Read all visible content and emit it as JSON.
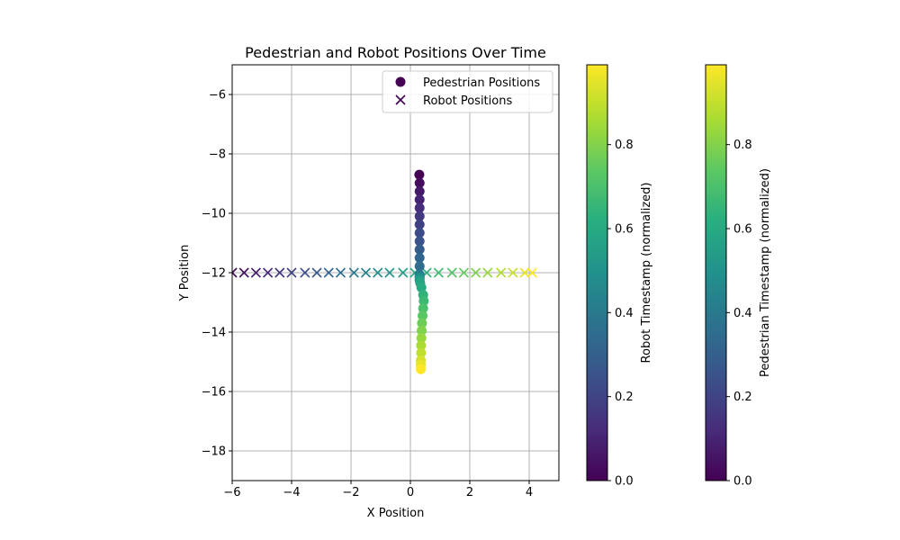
{
  "chart_data": {
    "type": "scatter",
    "title": "Pedestrian and Robot Positions Over Time",
    "xlabel": "X Position",
    "ylabel": "Y Position",
    "xlim": [
      -6,
      5
    ],
    "ylim": [
      -19,
      -5
    ],
    "xticks": [
      -6,
      -4,
      -2,
      0,
      2,
      4
    ],
    "yticks": [
      -6,
      -8,
      -10,
      -12,
      -14,
      -16,
      -18
    ],
    "grid": true,
    "legend_position": "top-right",
    "colormap": "viridis",
    "series": [
      {
        "name": "Pedestrian Positions",
        "marker": "circle",
        "x": [
          0.3,
          0.31,
          0.31,
          0.31,
          0.31,
          0.31,
          0.31,
          0.31,
          0.31,
          0.31,
          0.31,
          0.31,
          0.31,
          0.31,
          0.31,
          0.31,
          0.31,
          0.31,
          0.33,
          0.37,
          0.43,
          0.45,
          0.43,
          0.41,
          0.39,
          0.38,
          0.37,
          0.36,
          0.36,
          0.35,
          0.35,
          0.35
        ],
        "y": [
          -8.7,
          -8.98,
          -9.26,
          -9.54,
          -9.82,
          -10.1,
          -10.38,
          -10.66,
          -10.94,
          -11.22,
          -11.5,
          -11.78,
          -12.06,
          -12.1,
          -12.14,
          -12.18,
          -12.22,
          -12.26,
          -12.35,
          -12.5,
          -12.75,
          -12.95,
          -13.2,
          -13.45,
          -13.7,
          -13.95,
          -14.2,
          -14.45,
          -14.7,
          -14.95,
          -15.1,
          -15.25
        ],
        "t": [
          0.0,
          0.032,
          0.065,
          0.097,
          0.129,
          0.161,
          0.194,
          0.226,
          0.258,
          0.29,
          0.323,
          0.355,
          0.387,
          0.419,
          0.452,
          0.484,
          0.516,
          0.548,
          0.581,
          0.613,
          0.645,
          0.677,
          0.71,
          0.742,
          0.774,
          0.806,
          0.839,
          0.871,
          0.903,
          0.935,
          0.968,
          1.0
        ]
      },
      {
        "name": "Robot Positions",
        "marker": "x",
        "x": [
          -6.0,
          -5.6,
          -5.2,
          -4.8,
          -4.4,
          -4.0,
          -3.55,
          -3.15,
          -2.75,
          -2.35,
          -1.9,
          -1.5,
          -1.1,
          -0.7,
          -0.25,
          0.15,
          0.55,
          0.95,
          1.4,
          1.8,
          2.2,
          2.6,
          3.05,
          3.45,
          3.85,
          4.1
        ],
        "y": [
          -12,
          -12,
          -12,
          -12,
          -12,
          -12,
          -12,
          -12,
          -12,
          -12,
          -12,
          -12,
          -12,
          -12,
          -12,
          -12,
          -12,
          -12,
          -12,
          -12,
          -12,
          -12,
          -12,
          -12,
          -12,
          -12
        ],
        "t": [
          0.0,
          0.04,
          0.08,
          0.12,
          0.16,
          0.2,
          0.24,
          0.28,
          0.32,
          0.36,
          0.4,
          0.44,
          0.48,
          0.52,
          0.56,
          0.6,
          0.64,
          0.68,
          0.72,
          0.76,
          0.8,
          0.84,
          0.88,
          0.92,
          0.96,
          1.0
        ]
      }
    ],
    "colorbars": [
      {
        "label": "Robot Timestamp (normalized)",
        "ticks": [
          "0.0",
          "0.2",
          "0.4",
          "0.6",
          "0.8"
        ],
        "tick_values": [
          0,
          0.2,
          0.4,
          0.6,
          0.8
        ],
        "range": [
          0,
          0.99
        ]
      },
      {
        "label": "Pedestrian Timestamp (normalized)",
        "ticks": [
          "0.0",
          "0.2",
          "0.4",
          "0.6",
          "0.8"
        ],
        "tick_values": [
          0,
          0.2,
          0.4,
          0.6,
          0.8
        ],
        "range": [
          0,
          0.99
        ]
      }
    ]
  }
}
